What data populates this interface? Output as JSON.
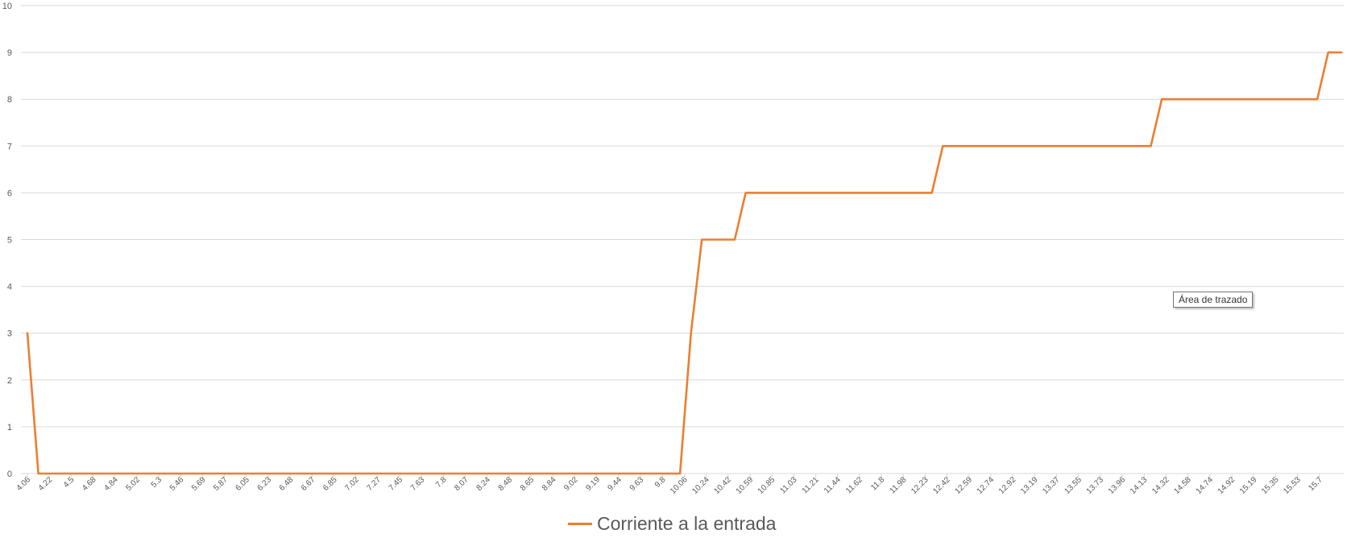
{
  "chart_data": {
    "type": "line",
    "ylim": [
      0,
      10
    ],
    "yticks": [
      0,
      1,
      2,
      3,
      4,
      5,
      6,
      7,
      8,
      9,
      10
    ],
    "xtick_labels": [
      "4.06",
      "4.22",
      "4.5",
      "4.68",
      "4.84",
      "5.02",
      "5.3",
      "5.46",
      "5.69",
      "5.87",
      "6.05",
      "6.23",
      "6.48",
      "6.67",
      "6.85",
      "7.02",
      "7.27",
      "7.45",
      "7.63",
      "7.8",
      "8.07",
      "8.24",
      "8.48",
      "8.65",
      "8.84",
      "9.02",
      "9.19",
      "9.44",
      "9.63",
      "9.8",
      "10.06",
      "10.24",
      "10.42",
      "10.59",
      "10.85",
      "11.03",
      "11.21",
      "11.44",
      "11.62",
      "11.8",
      "11.98",
      "12.23",
      "12.42",
      "12.59",
      "12.74",
      "12.92",
      "13.19",
      "13.37",
      "13.55",
      "13.73",
      "13.96",
      "14.13",
      "14.32",
      "14.58",
      "14.74",
      "14.92",
      "15.19",
      "15.35",
      "15.53",
      "15.7"
    ],
    "series": [
      {
        "name": "Corriente a la entrada",
        "color": "#ED7D31",
        "points": [
          [
            0,
            3
          ],
          [
            0.5,
            0
          ],
          [
            29.8,
            0
          ],
          [
            30.3,
            3
          ],
          [
            30.8,
            5
          ],
          [
            32.3,
            5
          ],
          [
            32.8,
            6
          ],
          [
            41.3,
            6
          ],
          [
            41.8,
            7
          ],
          [
            51.3,
            7
          ],
          [
            51.8,
            8
          ],
          [
            58.9,
            8
          ],
          [
            59.4,
            9
          ],
          [
            60,
            9
          ]
        ]
      }
    ],
    "grid": true,
    "legend": "bottom-center"
  },
  "tooltip": {
    "text": "Área de trazado"
  }
}
